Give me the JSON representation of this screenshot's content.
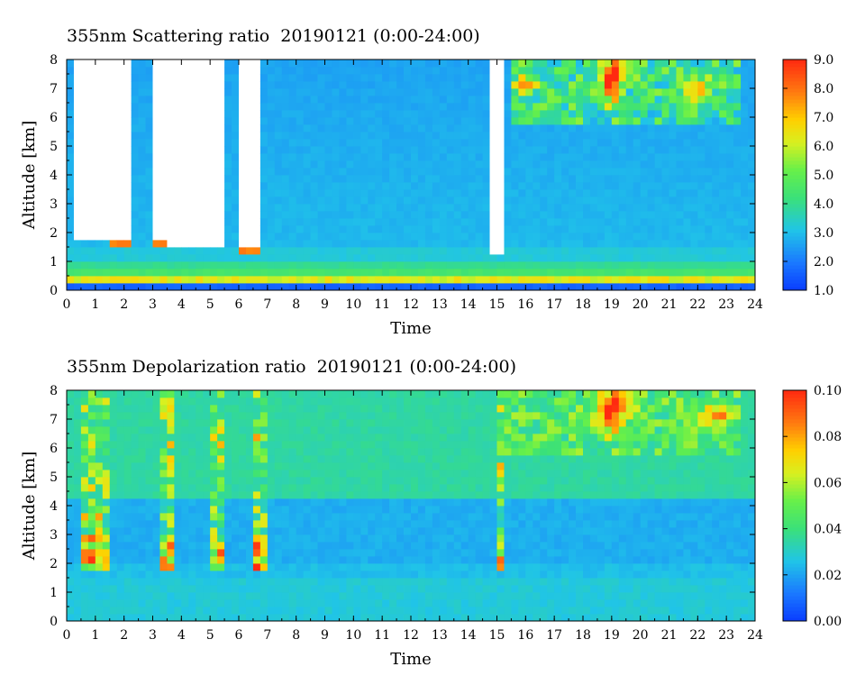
{
  "chart_data": [
    {
      "type": "heatmap",
      "title": "355nm Scattering ratio  20190121 (0:00-24:00)",
      "xlabel": "Time",
      "ylabel": "Altitude [km]",
      "xlim": [
        0,
        24
      ],
      "ylim": [
        0,
        8
      ],
      "x_ticks": [
        "0",
        "1",
        "2",
        "3",
        "4",
        "5",
        "6",
        "7",
        "8",
        "9",
        "10",
        "11",
        "12",
        "13",
        "14",
        "15",
        "16",
        "17",
        "18",
        "19",
        "20",
        "21",
        "22",
        "23",
        "24"
      ],
      "y_ticks": [
        "0",
        "1",
        "2",
        "3",
        "4",
        "5",
        "6",
        "7",
        "8"
      ],
      "colorbar": {
        "range": [
          1.0,
          9.0
        ],
        "ticks": [
          "1.0",
          "2.0",
          "3.0",
          "4.0",
          "5.0",
          "6.0",
          "7.0",
          "8.0",
          "9.0"
        ]
      },
      "features": {
        "no_data_color": "#ffffff",
        "no_data_intervals_hours": [
          [
            0.3,
            2.3
          ],
          [
            2.9,
            5.4
          ],
          [
            5.9,
            6.8
          ],
          [
            14.8,
            15.3
          ]
        ],
        "cloud_base_km": [
          [
            0.3,
            1.8
          ],
          [
            2.9,
            1.6
          ],
          [
            3.9,
            1.5
          ],
          [
            5.0,
            1.5
          ],
          [
            6.2,
            1.4
          ],
          [
            7.2,
            1.3
          ],
          [
            9.9,
            1.4
          ],
          [
            15.0,
            1.3
          ]
        ],
        "upper_cloud": {
          "time_range_hours": [
            15.5,
            23.5
          ],
          "altitude_range_km": [
            5.8,
            8.0
          ],
          "peak_value": 9.0
        }
      }
    },
    {
      "type": "heatmap",
      "title": "355nm Depolarization ratio  20190121 (0:00-24:00)",
      "xlabel": "Time",
      "ylabel": "Altitude [km]",
      "xlim": [
        0,
        24
      ],
      "ylim": [
        0,
        8
      ],
      "x_ticks": [
        "0",
        "1",
        "2",
        "3",
        "4",
        "5",
        "6",
        "7",
        "8",
        "9",
        "10",
        "11",
        "12",
        "13",
        "14",
        "15",
        "16",
        "17",
        "18",
        "19",
        "20",
        "21",
        "22",
        "23",
        "24"
      ],
      "y_ticks": [
        "0",
        "1",
        "2",
        "3",
        "4",
        "5",
        "6",
        "7",
        "8"
      ],
      "colorbar": {
        "range": [
          0.0,
          0.1
        ],
        "ticks": [
          "0.00",
          "0.02",
          "0.04",
          "0.06",
          "0.08",
          "0.10"
        ]
      },
      "features": {
        "high_depol_columns_hours": [
          [
            0.5,
            1.5
          ],
          [
            3.2,
            3.8
          ],
          [
            5.0,
            5.4
          ],
          [
            6.4,
            6.9
          ],
          [
            14.9,
            15.2
          ]
        ],
        "upper_cloud": {
          "time_range_hours": [
            15.0,
            23.5
          ],
          "altitude_range_km": [
            5.8,
            8.0
          ],
          "peak_value": 0.1
        }
      }
    }
  ]
}
